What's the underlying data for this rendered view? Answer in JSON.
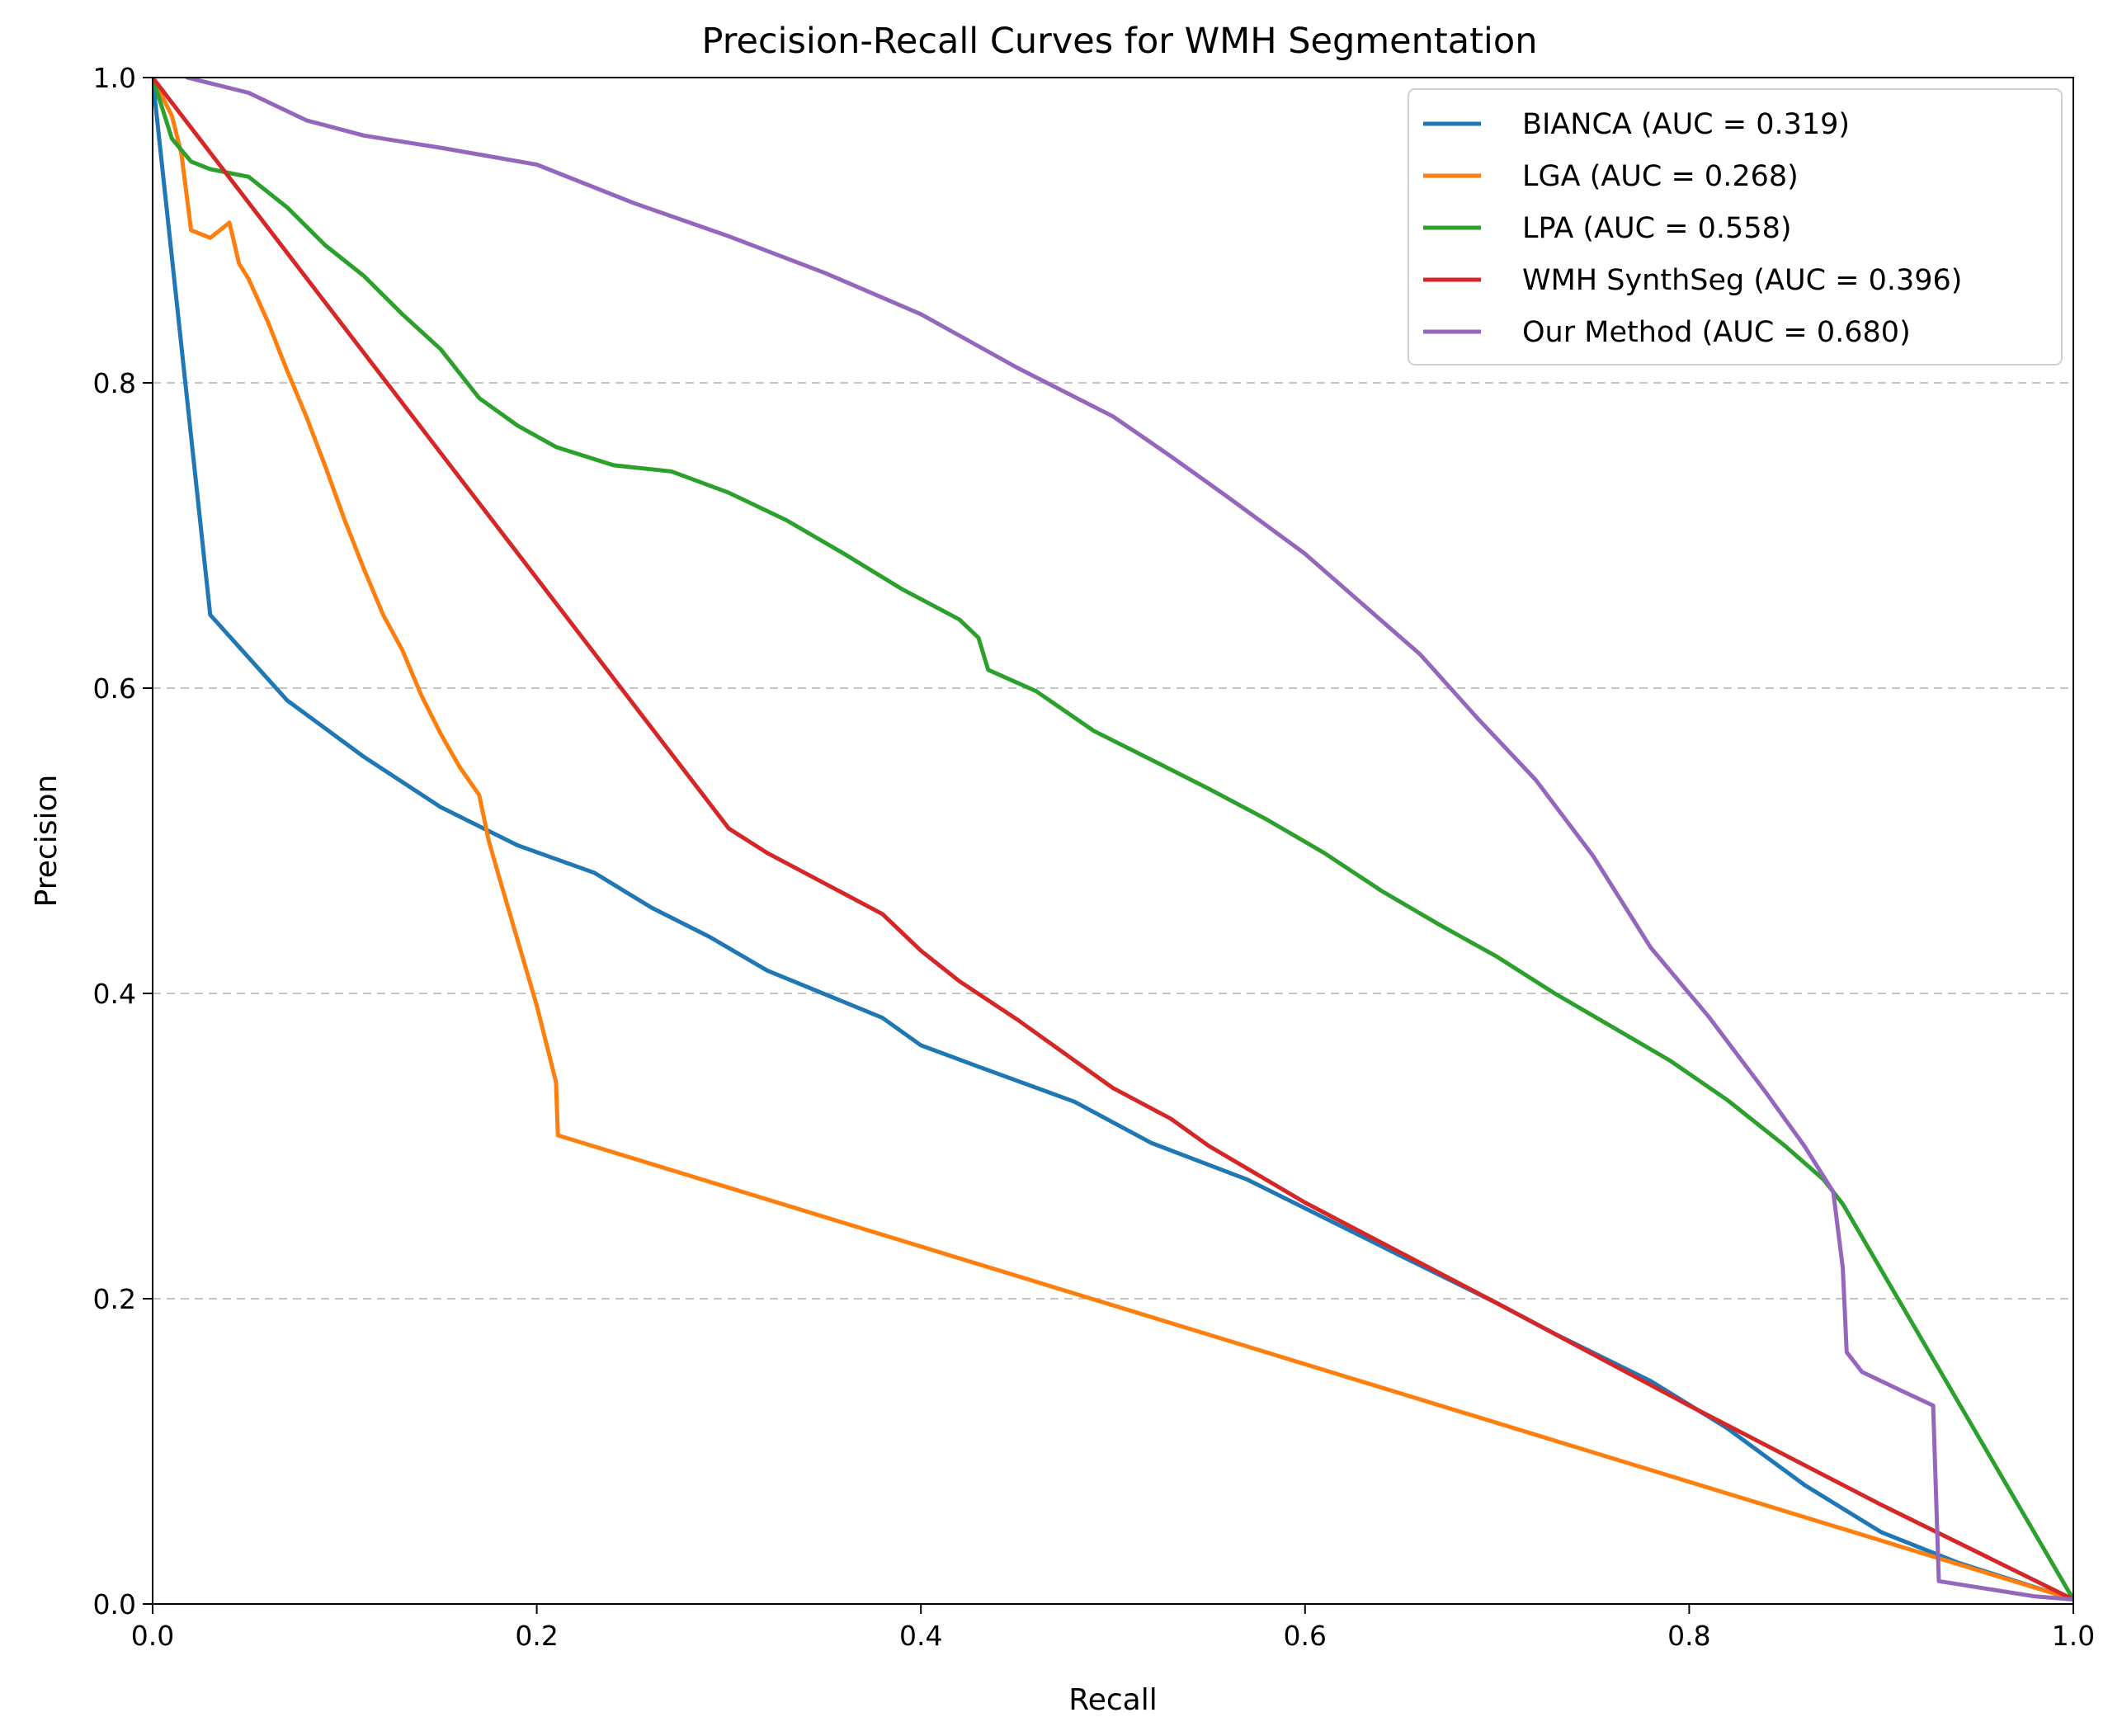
{
  "chart_data": {
    "type": "line",
    "title": "Precision-Recall Curves for WMH Segmentation",
    "xlabel": "Recall",
    "ylabel": "Precision",
    "xlim": [
      0,
      1
    ],
    "ylim": [
      0,
      1
    ],
    "xticks": [
      "0.0",
      "0.2",
      "0.4",
      "0.6",
      "0.8",
      "1.0"
    ],
    "yticks": [
      "0.0",
      "0.2",
      "0.4",
      "0.6",
      "0.8",
      "1.0"
    ],
    "grid": "horizontal dashed",
    "legend_position": "top-right",
    "series": [
      {
        "name": "BIANCA (AUC = 0.319)",
        "color": "#1f77b4",
        "points": [
          [
            0.0,
            1.0
          ],
          [
            0.03,
            0.648
          ],
          [
            0.07,
            0.592
          ],
          [
            0.11,
            0.555
          ],
          [
            0.15,
            0.522
          ],
          [
            0.19,
            0.497
          ],
          [
            0.23,
            0.479
          ],
          [
            0.26,
            0.456
          ],
          [
            0.29,
            0.437
          ],
          [
            0.32,
            0.415
          ],
          [
            0.38,
            0.384
          ],
          [
            0.4,
            0.366
          ],
          [
            0.43,
            0.352
          ],
          [
            0.48,
            0.329
          ],
          [
            0.52,
            0.302
          ],
          [
            0.57,
            0.278
          ],
          [
            0.65,
            0.228
          ],
          [
            0.7,
            0.197
          ],
          [
            0.73,
            0.177
          ],
          [
            0.78,
            0.146
          ],
          [
            0.82,
            0.115
          ],
          [
            0.86,
            0.078
          ],
          [
            0.9,
            0.047
          ],
          [
            0.94,
            0.027
          ],
          [
            1.0,
            0.003
          ]
        ]
      },
      {
        "name": "LGA (AUC = 0.268)",
        "color": "#ff7f0e",
        "points": [
          [
            0.0,
            1.0
          ],
          [
            0.01,
            0.975
          ],
          [
            0.015,
            0.95
          ],
          [
            0.02,
            0.9
          ],
          [
            0.03,
            0.895
          ],
          [
            0.04,
            0.905
          ],
          [
            0.045,
            0.878
          ],
          [
            0.05,
            0.868
          ],
          [
            0.06,
            0.84
          ],
          [
            0.07,
            0.808
          ],
          [
            0.08,
            0.778
          ],
          [
            0.09,
            0.745
          ],
          [
            0.1,
            0.71
          ],
          [
            0.11,
            0.678
          ],
          [
            0.12,
            0.648
          ],
          [
            0.13,
            0.625
          ],
          [
            0.14,
            0.595
          ],
          [
            0.15,
            0.57
          ],
          [
            0.16,
            0.548
          ],
          [
            0.17,
            0.53
          ],
          [
            0.175,
            0.5
          ],
          [
            0.18,
            0.478
          ],
          [
            0.19,
            0.435
          ],
          [
            0.2,
            0.392
          ],
          [
            0.21,
            0.342
          ],
          [
            0.211,
            0.307
          ],
          [
            1.0,
            0.003
          ]
        ]
      },
      {
        "name": "LPA (AUC = 0.558)",
        "color": "#2ca02c",
        "points": [
          [
            0.0,
            1.0
          ],
          [
            0.01,
            0.96
          ],
          [
            0.02,
            0.945
          ],
          [
            0.03,
            0.94
          ],
          [
            0.05,
            0.935
          ],
          [
            0.07,
            0.915
          ],
          [
            0.09,
            0.89
          ],
          [
            0.11,
            0.87
          ],
          [
            0.13,
            0.845
          ],
          [
            0.15,
            0.822
          ],
          [
            0.17,
            0.79
          ],
          [
            0.19,
            0.772
          ],
          [
            0.21,
            0.758
          ],
          [
            0.24,
            0.746
          ],
          [
            0.27,
            0.742
          ],
          [
            0.3,
            0.728
          ],
          [
            0.33,
            0.71
          ],
          [
            0.36,
            0.688
          ],
          [
            0.39,
            0.665
          ],
          [
            0.42,
            0.645
          ],
          [
            0.43,
            0.633
          ],
          [
            0.435,
            0.612
          ],
          [
            0.46,
            0.598
          ],
          [
            0.49,
            0.572
          ],
          [
            0.52,
            0.553
          ],
          [
            0.55,
            0.534
          ],
          [
            0.58,
            0.514
          ],
          [
            0.61,
            0.492
          ],
          [
            0.64,
            0.467
          ],
          [
            0.67,
            0.445
          ],
          [
            0.7,
            0.424
          ],
          [
            0.73,
            0.4
          ],
          [
            0.76,
            0.378
          ],
          [
            0.79,
            0.356
          ],
          [
            0.82,
            0.33
          ],
          [
            0.85,
            0.3
          ],
          [
            0.87,
            0.278
          ],
          [
            0.88,
            0.262
          ],
          [
            1.0,
            0.003
          ]
        ]
      },
      {
        "name": "WMH SynthSeg (AUC = 0.396)",
        "color": "#d62728",
        "points": [
          [
            0.0,
            1.0
          ],
          [
            0.3,
            0.508
          ],
          [
            0.32,
            0.492
          ],
          [
            0.35,
            0.472
          ],
          [
            0.38,
            0.452
          ],
          [
            0.4,
            0.428
          ],
          [
            0.42,
            0.408
          ],
          [
            0.45,
            0.383
          ],
          [
            0.48,
            0.356
          ],
          [
            0.5,
            0.338
          ],
          [
            0.53,
            0.318
          ],
          [
            0.55,
            0.3
          ],
          [
            0.6,
            0.263
          ],
          [
            0.7,
            0.197
          ],
          [
            0.8,
            0.13
          ],
          [
            0.9,
            0.065
          ],
          [
            1.0,
            0.003
          ]
        ]
      },
      {
        "name": "Our Method (AUC = 0.680)",
        "color": "#9467bd",
        "points": [
          [
            0.018,
            1.0
          ],
          [
            0.05,
            0.99
          ],
          [
            0.08,
            0.972
          ],
          [
            0.11,
            0.962
          ],
          [
            0.15,
            0.954
          ],
          [
            0.2,
            0.943
          ],
          [
            0.25,
            0.918
          ],
          [
            0.3,
            0.896
          ],
          [
            0.35,
            0.872
          ],
          [
            0.4,
            0.845
          ],
          [
            0.45,
            0.81
          ],
          [
            0.5,
            0.778
          ],
          [
            0.53,
            0.752
          ],
          [
            0.56,
            0.725
          ],
          [
            0.6,
            0.688
          ],
          [
            0.63,
            0.655
          ],
          [
            0.66,
            0.622
          ],
          [
            0.69,
            0.58
          ],
          [
            0.72,
            0.54
          ],
          [
            0.75,
            0.49
          ],
          [
            0.78,
            0.43
          ],
          [
            0.81,
            0.385
          ],
          [
            0.84,
            0.335
          ],
          [
            0.86,
            0.3
          ],
          [
            0.875,
            0.27
          ],
          [
            0.88,
            0.22
          ],
          [
            0.882,
            0.165
          ],
          [
            0.89,
            0.152
          ],
          [
            0.91,
            0.14
          ],
          [
            0.927,
            0.13
          ],
          [
            0.93,
            0.015
          ],
          [
            0.98,
            0.005
          ],
          [
            1.0,
            0.003
          ]
        ]
      }
    ]
  }
}
